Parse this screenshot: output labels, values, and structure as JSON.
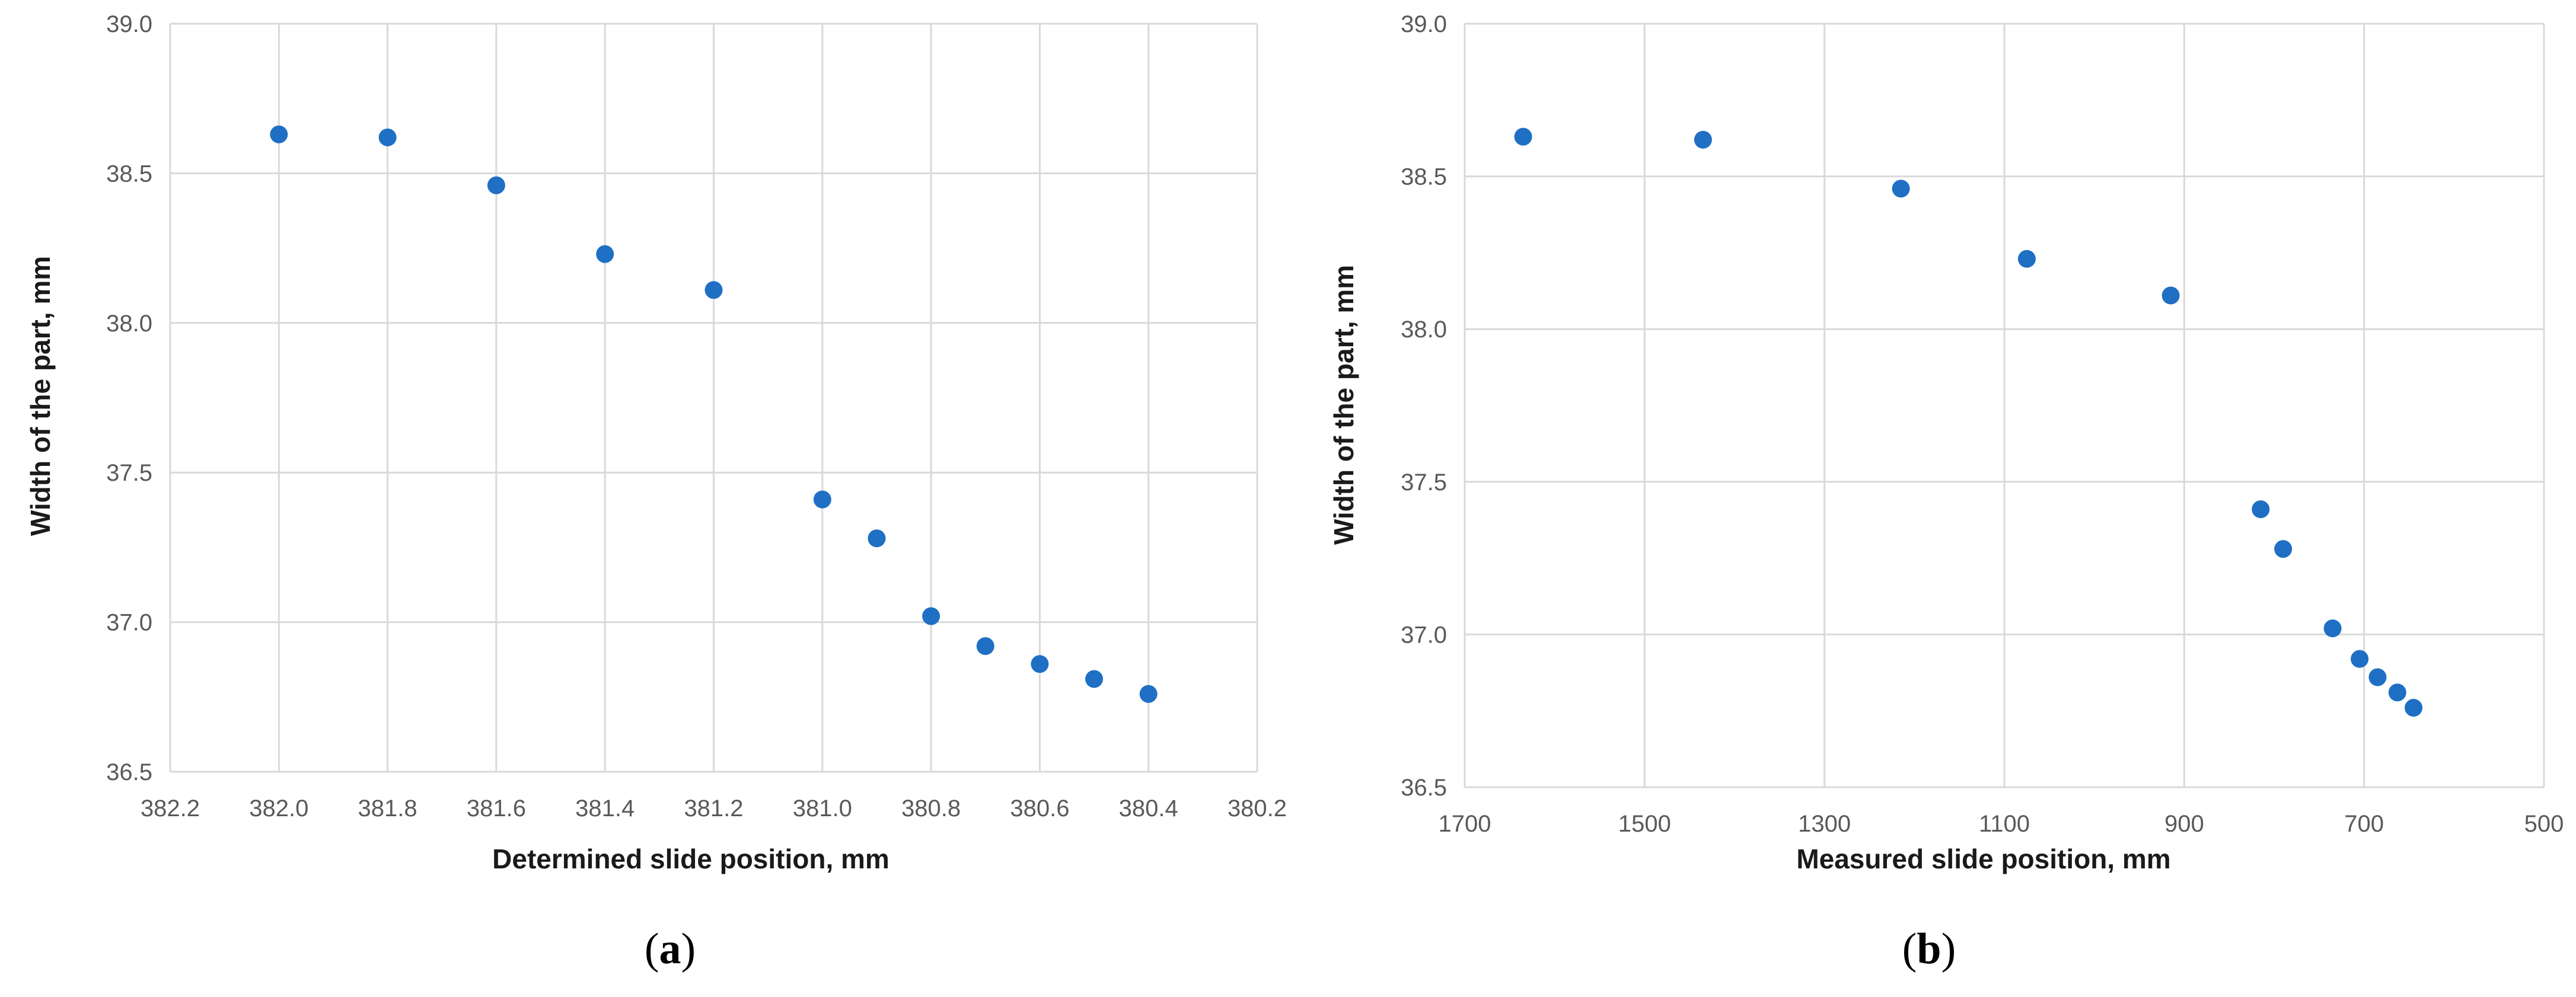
{
  "colors": {
    "marker": "#1f6fc4",
    "gridline": "#d9d9d9",
    "tick_text": "#595959",
    "axis_title": "#1a1a1a"
  },
  "chart_data": [
    {
      "type": "scatter",
      "panel_label": {
        "open": "(",
        "letter": "a",
        "close": ")"
      },
      "title": "",
      "xlabel": "Determined slide position, mm",
      "ylabel": "Width of the part, mm",
      "xlim": [
        382.2,
        380.2
      ],
      "x_reversed": true,
      "ylim": [
        36.5,
        39.0
      ],
      "xticks": [
        "382.2",
        "382.0",
        "381.8",
        "381.6",
        "381.4",
        "381.2",
        "381.0",
        "380.8",
        "380.6",
        "380.4",
        "380.2"
      ],
      "yticks": [
        "36.5",
        "37.0",
        "37.5",
        "38.0",
        "38.5",
        "39.0"
      ],
      "grid": true,
      "legend": "none",
      "series": [
        {
          "x": [
            382.0,
            381.8,
            381.6,
            381.4,
            381.2,
            381.0,
            380.9,
            380.8,
            380.7,
            380.6,
            380.5,
            380.4
          ],
          "y": [
            38.63,
            38.62,
            38.46,
            38.23,
            38.11,
            37.41,
            37.28,
            37.02,
            36.92,
            36.86,
            36.81,
            36.76
          ]
        }
      ]
    },
    {
      "type": "scatter",
      "panel_label": {
        "open": "(",
        "letter": "b",
        "close": ")"
      },
      "title": "",
      "xlabel": "Measured slide position, mm",
      "ylabel": "Width of the part, mm",
      "xlim": [
        1700,
        500
      ],
      "x_reversed": true,
      "ylim": [
        36.5,
        39.0
      ],
      "xticks": [
        "1700",
        "1500",
        "1300",
        "1100",
        "900",
        "700",
        "500"
      ],
      "yticks": [
        "36.5",
        "37.0",
        "37.5",
        "38.0",
        "38.5",
        "39.0"
      ],
      "grid": true,
      "legend": "none",
      "series": [
        {
          "x": [
            1635,
            1435,
            1215,
            1075,
            915,
            815,
            790,
            735,
            705,
            685,
            663,
            645
          ],
          "y": [
            38.63,
            38.62,
            38.46,
            38.23,
            38.11,
            37.41,
            37.28,
            37.02,
            36.92,
            36.86,
            36.81,
            36.76
          ]
        }
      ]
    }
  ]
}
